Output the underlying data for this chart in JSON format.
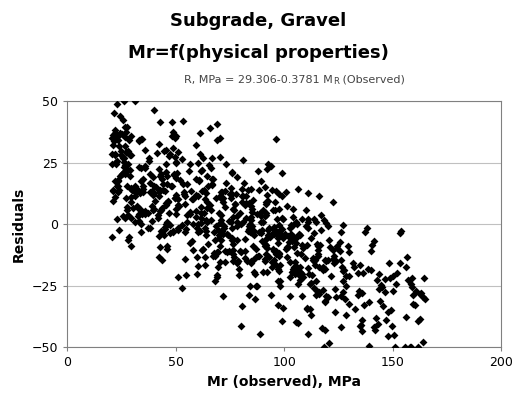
{
  "title_line1": "Subgrade, Gravel",
  "title_line2": "Mr=f(physical properties)",
  "subtitle_main": "R, MPa = 29.306-0.3781 M",
  "subtitle_sub": "R",
  "subtitle_end": " (Observed)",
  "xlabel": "Mr (observed), MPa",
  "ylabel": "Residuals",
  "xlim": [
    0,
    200
  ],
  "ylim": [
    -50,
    50
  ],
  "xticks": [
    0,
    50,
    100,
    150,
    200
  ],
  "yticks": [
    -50,
    -25,
    0,
    25,
    50
  ],
  "intercept": 29.306,
  "slope": -0.3781,
  "marker": "D",
  "marker_size": 16,
  "marker_color": "black",
  "bg_color": "white",
  "grid_color": "#c0c0c0",
  "seed": 42,
  "n_points": 750
}
